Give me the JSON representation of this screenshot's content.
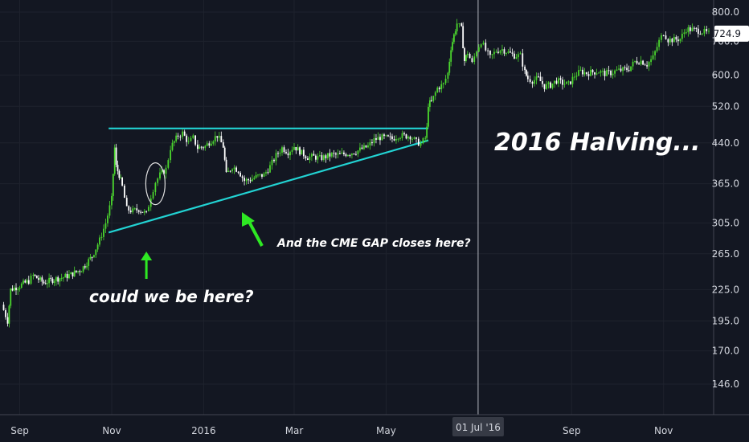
{
  "chart_data": {
    "type": "candlestick",
    "y_scale": "log",
    "ylim": [
      127,
      830
    ],
    "y_ticks": [
      146.0,
      170.0,
      195.0,
      225.0,
      265.0,
      305.0,
      365.0,
      440.0,
      520.0,
      600.0,
      700.0,
      800.0
    ],
    "x_tick_labels": [
      "Sep",
      "Nov",
      "2016",
      "Mar",
      "May",
      "Sep",
      "Nov"
    ],
    "crosshair_label": "01 Jul '16",
    "last_price": "724.9",
    "colors": {
      "background": "#131722",
      "up": "#4bd62e",
      "down": "#ffffff",
      "trendline": "#22d3d3",
      "arrow": "#2ee823",
      "price_tag_bg": "#ffffff",
      "price_tag_text": "#131722"
    },
    "series": [
      {
        "points": [
          [
            "2015-08-20",
            210
          ],
          [
            "2015-08-24",
            195
          ],
          [
            "2015-08-26",
            225
          ],
          [
            "2015-09-01",
            229
          ],
          [
            "2015-09-07",
            234
          ],
          [
            "2015-09-10",
            240
          ],
          [
            "2015-09-17",
            232
          ],
          [
            "2015-09-24",
            236
          ],
          [
            "2015-09-30",
            238
          ],
          [
            "2015-10-05",
            241
          ],
          [
            "2015-10-12",
            247
          ],
          [
            "2015-10-19",
            262
          ],
          [
            "2015-10-24",
            282
          ],
          [
            "2015-10-28",
            305
          ],
          [
            "2015-11-01",
            340
          ],
          [
            "2015-11-03",
            430
          ],
          [
            "2015-11-04",
            395
          ],
          [
            "2015-11-06",
            380
          ],
          [
            "2015-11-08",
            360
          ],
          [
            "2015-11-11",
            325
          ],
          [
            "2015-11-15",
            322
          ],
          [
            "2015-11-19",
            325
          ],
          [
            "2015-11-24",
            318
          ],
          [
            "2015-11-27",
            345
          ],
          [
            "2015-11-30",
            368
          ],
          [
            "2015-12-03",
            380
          ],
          [
            "2015-12-07",
            390
          ],
          [
            "2015-12-10",
            430
          ],
          [
            "2015-12-15",
            455
          ],
          [
            "2015-12-18",
            460
          ],
          [
            "2015-12-22",
            440
          ],
          [
            "2015-12-25",
            450
          ],
          [
            "2015-12-28",
            430
          ],
          [
            "2016-01-02",
            433
          ],
          [
            "2016-01-06",
            445
          ],
          [
            "2016-01-10",
            455
          ],
          [
            "2016-01-14",
            433
          ],
          [
            "2016-01-16",
            380
          ],
          [
            "2016-01-20",
            395
          ],
          [
            "2016-01-24",
            388
          ],
          [
            "2016-01-28",
            370
          ],
          [
            "2016-02-01",
            372
          ],
          [
            "2016-02-06",
            378
          ],
          [
            "2016-02-10",
            380
          ],
          [
            "2016-02-14",
            395
          ],
          [
            "2016-02-18",
            415
          ],
          [
            "2016-02-22",
            430
          ],
          [
            "2016-02-26",
            422
          ],
          [
            "2016-03-01",
            433
          ],
          [
            "2016-03-06",
            420
          ],
          [
            "2016-03-10",
            412
          ],
          [
            "2016-03-14",
            413
          ],
          [
            "2016-03-18",
            410
          ],
          [
            "2016-03-22",
            413
          ],
          [
            "2016-03-26",
            417
          ],
          [
            "2016-03-30",
            416
          ],
          [
            "2016-04-03",
            418
          ],
          [
            "2016-04-07",
            420
          ],
          [
            "2016-04-11",
            423
          ],
          [
            "2016-04-15",
            428
          ],
          [
            "2016-04-19",
            433
          ],
          [
            "2016-04-23",
            446
          ],
          [
            "2016-04-27",
            451
          ],
          [
            "2016-05-01",
            450
          ],
          [
            "2016-05-05",
            448
          ],
          [
            "2016-05-09",
            455
          ],
          [
            "2016-05-13",
            454
          ],
          [
            "2016-05-17",
            454
          ],
          [
            "2016-05-21",
            442
          ],
          [
            "2016-05-24",
            438
          ],
          [
            "2016-05-27",
            450
          ],
          [
            "2016-05-28",
            470
          ],
          [
            "2016-05-29",
            525
          ],
          [
            "2016-05-31",
            530
          ],
          [
            "2016-06-04",
            565
          ],
          [
            "2016-06-08",
            575
          ],
          [
            "2016-06-11",
            605
          ],
          [
            "2016-06-13",
            680
          ],
          [
            "2016-06-15",
            720
          ],
          [
            "2016-06-17",
            760
          ],
          [
            "2016-06-20",
            740
          ],
          [
            "2016-06-22",
            640
          ],
          [
            "2016-06-24",
            665
          ],
          [
            "2016-06-27",
            632
          ],
          [
            "2016-06-30",
            673
          ],
          [
            "2016-07-03",
            700
          ],
          [
            "2016-07-06",
            672
          ],
          [
            "2016-07-09",
            650
          ],
          [
            "2016-07-13",
            670
          ],
          [
            "2016-07-17",
            675
          ],
          [
            "2016-07-21",
            665
          ],
          [
            "2016-07-25",
            656
          ],
          [
            "2016-07-29",
            655
          ],
          [
            "2016-08-01",
            608
          ],
          [
            "2016-08-03",
            590
          ],
          [
            "2016-08-06",
            585
          ],
          [
            "2016-08-10",
            590
          ],
          [
            "2016-08-14",
            570
          ],
          [
            "2016-08-18",
            573
          ],
          [
            "2016-08-22",
            585
          ],
          [
            "2016-08-26",
            578
          ],
          [
            "2016-08-30",
            575
          ],
          [
            "2016-09-03",
            598
          ],
          [
            "2016-09-07",
            610
          ],
          [
            "2016-09-11",
            605
          ],
          [
            "2016-09-15",
            608
          ],
          [
            "2016-09-19",
            610
          ],
          [
            "2016-09-23",
            604
          ],
          [
            "2016-09-27",
            606
          ],
          [
            "2016-10-01",
            612
          ],
          [
            "2016-10-05",
            614
          ],
          [
            "2016-10-09",
            618
          ],
          [
            "2016-10-13",
            638
          ],
          [
            "2016-10-17",
            640
          ],
          [
            "2016-10-21",
            630
          ],
          [
            "2016-10-25",
            650
          ],
          [
            "2016-10-29",
            700
          ],
          [
            "2016-11-01",
            728
          ],
          [
            "2016-11-04",
            705
          ],
          [
            "2016-11-08",
            705
          ],
          [
            "2016-11-12",
            708
          ],
          [
            "2016-11-16",
            740
          ],
          [
            "2016-11-20",
            738
          ],
          [
            "2016-11-24",
            735
          ],
          [
            "2016-11-28",
            730
          ],
          [
            "2016-12-01",
            725
          ]
        ]
      }
    ],
    "trendlines": [
      {
        "kind": "resistance",
        "from": [
          "2015-10-30",
          470
        ],
        "to": [
          "2016-05-29",
          470
        ]
      },
      {
        "kind": "support",
        "from": [
          "2015-10-30",
          292
        ],
        "to": [
          "2016-05-29",
          445
        ]
      }
    ]
  },
  "annotations": {
    "halving": "2016 Halving...",
    "cme": "And the CME GAP closes here?",
    "here": "could we be here?"
  }
}
